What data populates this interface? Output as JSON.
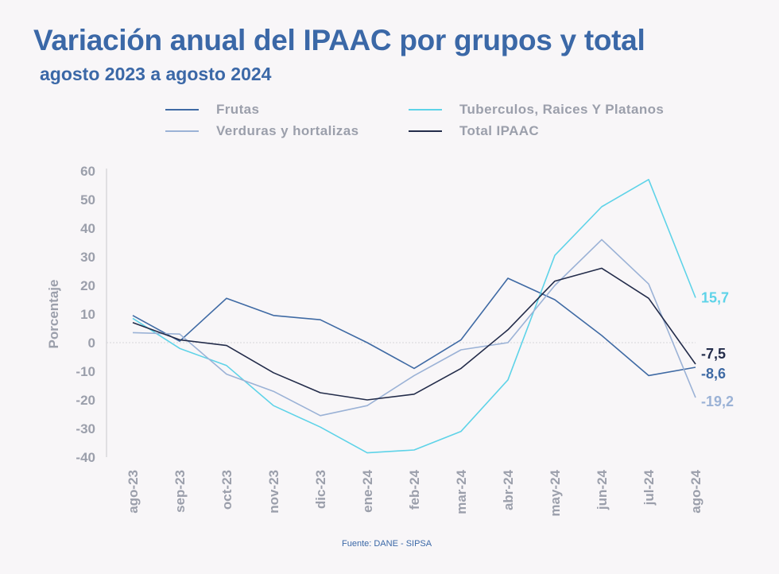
{
  "chart_data": {
    "type": "line",
    "title": "Variación anual del IPAAC por grupos y total",
    "subtitle": "agosto 2023 a agosto 2024",
    "ylabel": "Porcentaje",
    "xlabel": "",
    "ylim": [
      -40,
      60
    ],
    "yticks": [
      -40,
      -30,
      -20,
      -10,
      0,
      10,
      20,
      30,
      40,
      50,
      60
    ],
    "ytick_labels": [
      "-40",
      "-30",
      "-20",
      "-10",
      "0",
      "10",
      "20",
      "30",
      "40",
      "50",
      "60"
    ],
    "categories": [
      "ago-23",
      "sep-23",
      "oct-23",
      "nov-23",
      "dic-23",
      "ene-24",
      "feb-24",
      "mar-24",
      "abr-24",
      "may-24",
      "jun-24",
      "jul-24",
      "ago-24"
    ],
    "legend_position": "top",
    "series": [
      {
        "name": "Frutas",
        "color": "#3f6aa4",
        "values": [
          9.5,
          0.5,
          15.5,
          9.5,
          8.0,
          0.0,
          -9.0,
          1.0,
          22.5,
          15.0,
          2.5,
          -11.5,
          -8.6
        ],
        "end_label": "-8,6"
      },
      {
        "name": "Tuberculos, Raices Y Platanos",
        "color": "#5ed3e8",
        "values": [
          8.5,
          -2.0,
          -8.0,
          -22.0,
          -29.5,
          -38.5,
          -37.5,
          -31.0,
          -13.0,
          30.5,
          47.5,
          57.0,
          15.7
        ],
        "end_label": "15,7"
      },
      {
        "name": "Verduras y hortalizas",
        "color": "#9bb2d6",
        "values": [
          3.5,
          3.0,
          -11.0,
          -17.0,
          -25.5,
          -22.0,
          -11.5,
          -2.5,
          0.0,
          20.0,
          36.0,
          20.5,
          -19.2
        ],
        "end_label": "-19,2"
      },
      {
        "name": "Total IPAAC",
        "color": "#232c4a",
        "values": [
          7.0,
          1.0,
          -1.0,
          -10.5,
          -17.5,
          -20.0,
          -18.0,
          -9.0,
          4.5,
          21.5,
          26.0,
          15.5,
          -7.5
        ],
        "end_label": "-7,5"
      }
    ]
  },
  "source": "Fuente: DANE - SIPSA"
}
